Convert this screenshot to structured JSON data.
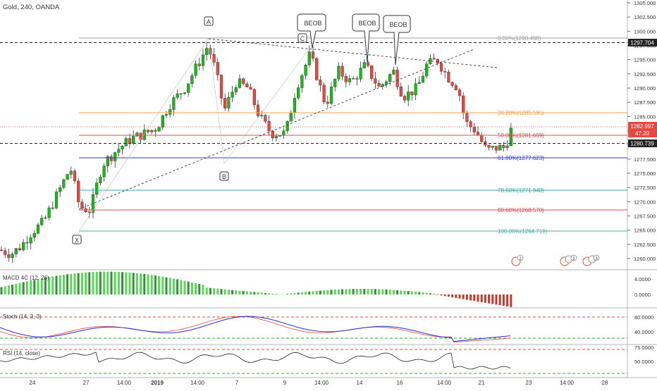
{
  "header": {
    "symbol_title": "Gold, 240, OANDA"
  },
  "price_axis": {
    "ticks": [
      "1305.000",
      "1302.500",
      "1300.000",
      "1297.500",
      "1295.000",
      "1292.500",
      "1290.000",
      "1287.500",
      "1285.000",
      "1282.500",
      "1280.000",
      "1277.500",
      "1275.000",
      "1272.500",
      "1270.000",
      "1267.500",
      "1265.000",
      "1262.500",
      "1260.000"
    ],
    "tag_high": "1297.704",
    "tag_price": "1282.997",
    "tag_countdown": "47:20",
    "tag_low": "1280.739"
  },
  "fibonacci": [
    {
      "label": "0.00%(1298.498)",
      "color": "#9e9e9e"
    },
    {
      "label": "38.20%(1285.595)",
      "color": "#f5a34a"
    },
    {
      "label": "50.00%(1281.609)",
      "color": "#e04c4c"
    },
    {
      "label": "61.80%(1277.623)",
      "color": "#3a3adf"
    },
    {
      "label": "78.60%(1271.948)",
      "color": "#3aa7a7"
    },
    {
      "label": "88.60%(1268.570)",
      "color": "#e04c4c"
    },
    {
      "label": "100.00%(1264.719)",
      "color": "#4cb39a"
    }
  ],
  "pattern_labels": {
    "x": "X",
    "a": "A",
    "b": "B",
    "c": "C"
  },
  "beob_callouts": [
    "BEOB",
    "BEOB",
    "BEOB"
  ],
  "event_badges": [
    "2",
    "2",
    "3"
  ],
  "indicators": {
    "macd": {
      "label": "MACD 4C (12, 26)",
      "ticks": [
        "4.0000",
        "0.0000"
      ]
    },
    "stoch": {
      "label": "Stoch (14, 3, 3)",
      "ticks": [
        "80.0000",
        "40.0000"
      ]
    },
    "rsi": {
      "label": "RSI (14, close)",
      "ticks": [
        "75.0000",
        "50.0000"
      ]
    }
  },
  "time_axis": {
    "ticks": [
      "24",
      "27",
      "14:00",
      "2019",
      "14:00",
      "7",
      "9",
      "14:00",
      "14",
      "16",
      "14:00",
      "21",
      "23",
      "14:00",
      "28"
    ]
  },
  "colors": {
    "bull": "#26a69a",
    "bull_bright": "#19b919",
    "bear": "#e8473f",
    "macd_pos": "#57d957",
    "macd_neg": "#c0392b"
  }
}
